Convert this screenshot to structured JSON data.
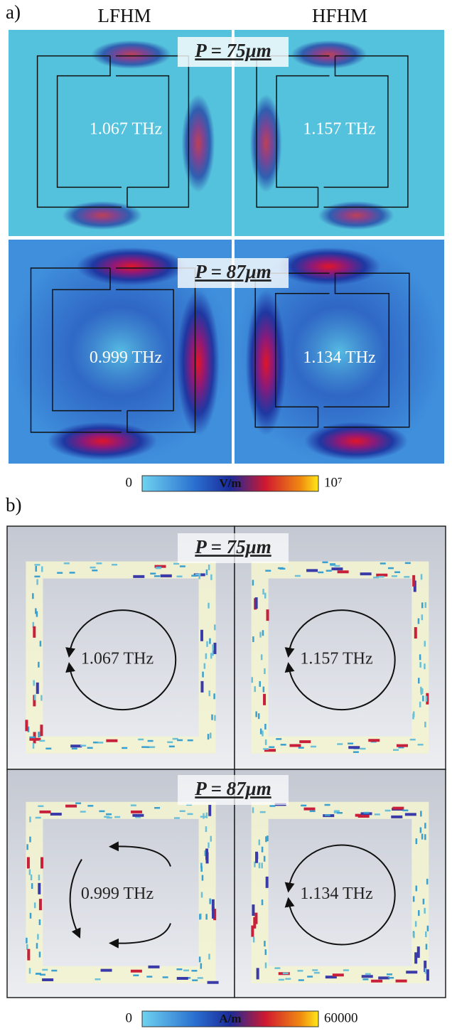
{
  "panel_a": {
    "label": "a)",
    "columns": [
      "LFHM",
      "HFHM"
    ],
    "rows": [
      {
        "period": "P = 75μm",
        "frequencies": [
          "1.067 THz",
          "1.157 THz"
        ]
      },
      {
        "period": "P = 87μm",
        "frequencies": [
          "0.999 THz",
          "1.134 THz"
        ]
      }
    ],
    "colorbar": {
      "min": 0,
      "unit": "V/m",
      "max": "10⁷"
    }
  },
  "panel_b": {
    "label": "b)",
    "rows": [
      {
        "period": "P = 75μm",
        "frequencies": [
          "1.067 THz",
          "1.157 THz"
        ]
      },
      {
        "period": "P = 87μm",
        "frequencies": [
          "0.999 THz",
          "1.134 THz"
        ]
      }
    ],
    "colorbar": {
      "min": 0,
      "unit": "A/m",
      "max": 60000
    }
  }
}
